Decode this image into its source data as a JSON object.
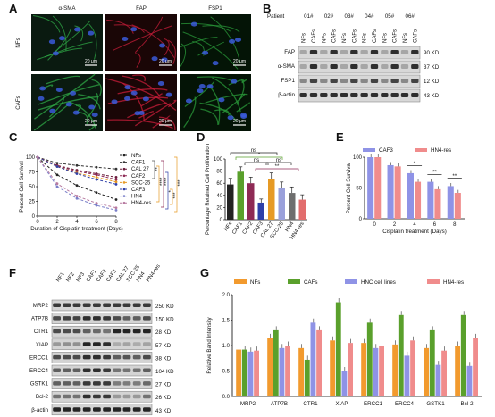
{
  "panel_letters": [
    "A",
    "B",
    "C",
    "D",
    "E",
    "F",
    "G"
  ],
  "panelA": {
    "col_titles": [
      "α-SMA",
      "FAP",
      "FSP1"
    ],
    "row_labels": [
      "NFs",
      "CAFs"
    ],
    "scale_bar": "20 μm"
  },
  "panelB": {
    "patient_label": "Patient",
    "patients": [
      "01#",
      "02#",
      "03#",
      "04#",
      "05#",
      "06#"
    ],
    "lanes": [
      "NFs",
      "CAFs"
    ],
    "bands": [
      {
        "name": "FAP",
        "size": "90 KD"
      },
      {
        "name": "α-SMA",
        "size": "37 KD"
      },
      {
        "name": "FSP1",
        "size": "12 KD"
      },
      {
        "name": "β-actin",
        "size": "43 KD"
      }
    ]
  },
  "panelF": {
    "lanes": [
      "NF1",
      "NF2",
      "NF3",
      "CAF1",
      "CAF2",
      "CAF3",
      "CAL 27",
      "SCC-25",
      "HN4",
      "HN4-res"
    ],
    "bands": [
      {
        "name": "MRP2",
        "size": "250 KD"
      },
      {
        "name": "ATP7B",
        "size": "150 KD"
      },
      {
        "name": "CTR1",
        "size": "28 KD"
      },
      {
        "name": "XIAP",
        "size": "57 KD"
      },
      {
        "name": "ERCC1",
        "size": "38 KD"
      },
      {
        "name": "ERCC4",
        "size": "104 KD"
      },
      {
        "name": "GSTK1",
        "size": "27 KD"
      },
      {
        "name": "Bcl-2",
        "size": "26 KD"
      },
      {
        "name": "β-actin",
        "size": "43 KD"
      }
    ]
  },
  "chart_data": [
    {
      "panel": "C",
      "type": "line",
      "xlabel": "Duration of Cisplatin treatment (Days)",
      "ylabel": "Percent Cell Survival",
      "xlim": [
        0,
        8
      ],
      "ylim": [
        0,
        100
      ],
      "x": [
        0,
        2,
        4,
        6,
        8
      ],
      "xticks": [
        0,
        2,
        4,
        6,
        8
      ],
      "yticks": [
        0,
        25,
        50,
        75,
        100
      ],
      "series": [
        {
          "name": "NFs",
          "color": "#222222",
          "values": [
            100,
            70,
            52,
            40,
            28
          ]
        },
        {
          "name": "CAF1",
          "color": "#333333",
          "values": [
            100,
            90,
            86,
            83,
            80
          ]
        },
        {
          "name": "CAL 27",
          "color": "#6a1a3a",
          "values": [
            100,
            86,
            78,
            72,
            66
          ]
        },
        {
          "name": "CAF2",
          "color": "#8e2a55",
          "values": [
            100,
            85,
            76,
            70,
            62
          ]
        },
        {
          "name": "SCC-25",
          "color": "#e69a25",
          "values": [
            100,
            84,
            73,
            66,
            58
          ]
        },
        {
          "name": "CAF3",
          "color": "#2e3fa8",
          "values": [
            100,
            84,
            72,
            62,
            54
          ]
        },
        {
          "name": "HN4",
          "color": "#7a7fc9",
          "values": [
            100,
            50,
            30,
            18,
            10
          ]
        },
        {
          "name": "HN4-res",
          "color": "#b77aa0",
          "values": [
            100,
            55,
            34,
            22,
            14
          ]
        }
      ],
      "annotations": [
        "**",
        "****",
        "****",
        "*",
        "***",
        "***"
      ]
    },
    {
      "panel": "D",
      "type": "bar",
      "ylabel": "Percentage Retained Cell Proliferation",
      "ylim": [
        0,
        100
      ],
      "yticks": [
        0,
        20,
        40,
        60,
        80,
        100
      ],
      "categories": [
        "NFs",
        "CAF1",
        "CAF2",
        "CAF3",
        "CAL 27",
        "SCC-25",
        "HN4",
        "HN4-res"
      ],
      "values": [
        58,
        79,
        60,
        28,
        67,
        52,
        44,
        33
      ],
      "errors": [
        10,
        8,
        10,
        6,
        10,
        10,
        10,
        8
      ],
      "colors": [
        "#222222",
        "#5aa02c",
        "#8e2a55",
        "#2e3fa8",
        "#e69a25",
        "#9aa0db",
        "#6e6e6e",
        "#e26d6d"
      ],
      "annotations": [
        "ns",
        "*",
        "ns",
        "ns",
        "**"
      ]
    },
    {
      "panel": "E",
      "type": "bar",
      "ylabel": "Percent Cell Survival",
      "xlabel": "Cisplatin treatment (Days)",
      "ylim": [
        0,
        100
      ],
      "yticks": [
        0,
        50,
        100
      ],
      "categories": [
        "0",
        "2",
        "4",
        "6",
        "8"
      ],
      "series": [
        {
          "name": "CAF3",
          "color": "#8f93e6",
          "values": [
            100,
            87,
            74,
            60,
            53
          ]
        },
        {
          "name": "HN4-res",
          "color": "#f08c8c",
          "values": [
            100,
            85,
            60,
            48,
            42
          ]
        }
      ],
      "annotations": [
        "*",
        "**",
        "**"
      ]
    },
    {
      "panel": "G",
      "type": "bar",
      "ylabel": "Relative Band Intensity",
      "ylim": [
        0,
        2.0
      ],
      "yticks": [
        0.0,
        0.5,
        1.0,
        1.5,
        2.0
      ],
      "categories": [
        "MRP2",
        "ATP7B",
        "CTR1",
        "XIAP",
        "ERCC1",
        "ERCC4",
        "GSTK1",
        "Bcl-2"
      ],
      "series": [
        {
          "name": "NFs",
          "color": "#f29a2e",
          "values": [
            0.92,
            1.15,
            0.95,
            1.1,
            1.05,
            1.02,
            0.95,
            1.0
          ]
        },
        {
          "name": "CAFs",
          "color": "#5aa02c",
          "values": [
            0.92,
            1.3,
            0.72,
            1.85,
            1.45,
            1.6,
            1.3,
            1.6
          ]
        },
        {
          "name": "HNC cell lines",
          "color": "#8f93e6",
          "values": [
            0.88,
            0.95,
            1.45,
            0.5,
            0.95,
            0.8,
            0.62,
            0.6
          ]
        },
        {
          "name": "HN4-res",
          "color": "#f08c8c",
          "values": [
            0.9,
            1.0,
            1.3,
            1.05,
            1.0,
            1.1,
            0.9,
            1.15
          ]
        }
      ]
    }
  ]
}
